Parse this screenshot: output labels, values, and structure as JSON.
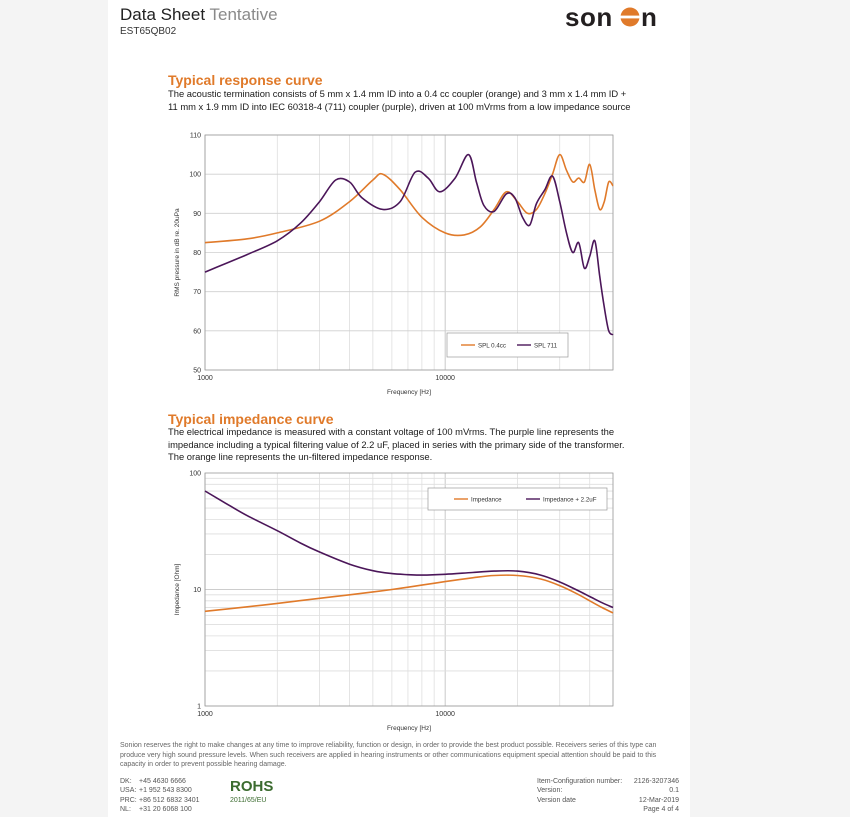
{
  "header": {
    "title": "Data Sheet",
    "title_status": "Tentative",
    "part_number": "EST65QB02",
    "logo_text": "sonion"
  },
  "response_section": {
    "title": "Typical response curve",
    "description": "The acoustic termination consists of 5 mm x 1.4 mm ID into a 0.4 cc coupler (orange) and 3 mm x 1.4 mm ID + 11 mm x 1.9 mm ID into IEC 60318-4 (711) coupler (purple), driven at 100 mVrms from a low impedance source"
  },
  "impedance_section": {
    "title": "Typical impedance curve",
    "description": "The electrical impedance is measured with a constant voltage of 100 mVrms. The purple line represents the impedance including a typical filtering value of 2.2 uF, placed in series with the primary side of the transformer. The orange line represents the un-filtered impedance response."
  },
  "colors": {
    "orange": "#e07a2a",
    "purple": "#4b1659",
    "accent": "#e07a2a"
  },
  "chart_data": [
    {
      "type": "line",
      "title": "",
      "xlabel": "Frequency [Hz]",
      "ylabel": "RMS pressure in dB re. 20uPa",
      "x_scale": "log",
      "xlim": [
        1000,
        50000
      ],
      "ylim": [
        50,
        110
      ],
      "x_ticks": [
        "1000",
        "10000"
      ],
      "y_ticks": [
        "50",
        "60",
        "70",
        "80",
        "90",
        "100",
        "110"
      ],
      "grid": true,
      "legend": "bottom-right",
      "series": [
        {
          "name": "SPL 0.4cc",
          "color": "#e07a2a",
          "x": [
            1000,
            1500,
            2000,
            3000,
            4000,
            5000,
            5500,
            6500,
            8000,
            10000,
            12000,
            14000,
            16000,
            18000,
            20000,
            22000,
            24000,
            26000,
            28000,
            30000,
            32000,
            34000,
            36000,
            38000,
            40000,
            42000,
            44000,
            46000,
            48000,
            50000
          ],
          "y": [
            82.5,
            83.5,
            85,
            88,
            93,
            98.5,
            100,
            96,
            89,
            85,
            84.5,
            86.5,
            91,
            95.5,
            93,
            90,
            91,
            95,
            100,
            105,
            101,
            98,
            99,
            98,
            102.5,
            96,
            91,
            93,
            98,
            97
          ]
        },
        {
          "name": "SPL 711",
          "color": "#4b1659",
          "x": [
            1000,
            1500,
            2000,
            2500,
            3000,
            3500,
            4000,
            4500,
            5500,
            6500,
            7500,
            8500,
            9500,
            11000,
            12500,
            13500,
            14500,
            16000,
            18000,
            19500,
            21000,
            22500,
            24000,
            26000,
            28000,
            30000,
            32000,
            34000,
            36000,
            38000,
            40000,
            42000,
            44000,
            46000,
            48000,
            50000
          ],
          "y": [
            75,
            79.5,
            83,
            87.5,
            93,
            98.5,
            98,
            94,
            91,
            93,
            100.5,
            99,
            95.5,
            99,
            105,
            98,
            92,
            90.5,
            95,
            94,
            89,
            87,
            92.5,
            96,
            99.5,
            93,
            85,
            80,
            82.5,
            76,
            79,
            83,
            74,
            66,
            60,
            59
          ]
        }
      ]
    },
    {
      "type": "line",
      "title": "",
      "xlabel": "Frequency [Hz]",
      "ylabel": "Impedance [Ohm]",
      "x_scale": "log",
      "y_scale": "log",
      "xlim": [
        1000,
        50000
      ],
      "ylim": [
        1,
        100
      ],
      "x_ticks": [
        "1000",
        "10000"
      ],
      "y_ticks": [
        "1",
        "10",
        "100"
      ],
      "grid": true,
      "legend": "top-right",
      "series": [
        {
          "name": "Impedance",
          "color": "#e07a2a",
          "x": [
            1000,
            1500,
            2000,
            3000,
            4000,
            6000,
            8000,
            10000,
            13000,
            16000,
            20000,
            25000,
            30000,
            35000,
            40000,
            45000,
            50000
          ],
          "y": [
            6.5,
            7.1,
            7.6,
            8.4,
            9.0,
            10.0,
            10.9,
            11.7,
            12.6,
            13.2,
            13.2,
            12.3,
            10.8,
            9.3,
            8.0,
            7.0,
            6.3
          ]
        },
        {
          "name": "Impedance + 2.2uF",
          "color": "#4b1659",
          "x": [
            1000,
            1200,
            1500,
            2000,
            2500,
            3000,
            4000,
            5000,
            6000,
            7000,
            8000,
            10000,
            13000,
            16000,
            20000,
            25000,
            30000,
            35000,
            40000,
            45000,
            50000
          ],
          "y": [
            70,
            56,
            43,
            32,
            25,
            21,
            16.5,
            14.5,
            13.7,
            13.4,
            13.3,
            13.5,
            14.0,
            14.4,
            14.4,
            13.3,
            11.6,
            10.0,
            8.7,
            7.7,
            7.0
          ]
        }
      ]
    }
  ],
  "footer": {
    "disclaimer": "Sonion reserves the right to make changes at any time to improve reliability, function or design, in order to provide the best product possible. Receivers series of this type can produce very high sound pressure levels. When such receivers are applied in hearing instruments or other communications equipment special attention should be paid to this capacity in order to prevent possible hearing damage.",
    "contacts": [
      {
        "region": "DK:",
        "phone": "+45 4630 6666"
      },
      {
        "region": "USA:",
        "phone": "+1 952 543 8300"
      },
      {
        "region": "PRC:",
        "phone": "+86 512 6832 3401"
      },
      {
        "region": "NL:",
        "phone": "+31 20 6068 100"
      }
    ],
    "rohs_mark": "ROHS",
    "rohs_directive": "2011/65/EU",
    "meta": [
      {
        "label": "Item-Configuration number:",
        "value": "2126-3207346"
      },
      {
        "label": "Version:",
        "value": "0.1"
      },
      {
        "label": "Version date",
        "value": "12-Mar-2019"
      },
      {
        "label": "",
        "value": "Page 4 of 4"
      }
    ]
  }
}
